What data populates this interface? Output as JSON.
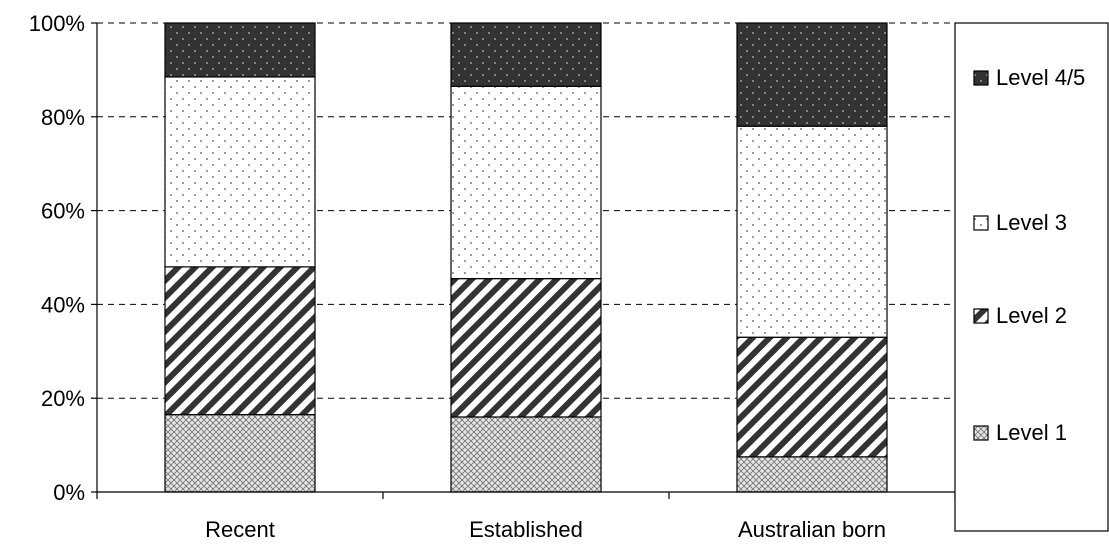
{
  "chart_data": {
    "type": "bar",
    "stacked": true,
    "percent": true,
    "categories": [
      "Recent",
      "Established",
      "Australian born"
    ],
    "series": [
      {
        "name": "Level 1",
        "values": [
          16.5,
          16,
          7.5
        ]
      },
      {
        "name": "Level 2",
        "values": [
          31.5,
          29.5,
          25.5
        ]
      },
      {
        "name": "Level 3",
        "values": [
          40.5,
          41,
          45
        ]
      },
      {
        "name": "Level 4/5",
        "values": [
          11.5,
          13.5,
          22
        ]
      }
    ],
    "legend_order": [
      "Level 4/5",
      "Level 3",
      "Level 2",
      "Level 1"
    ],
    "ylim": [
      0,
      100
    ],
    "yticks": [
      "0%",
      "20%",
      "40%",
      "60%",
      "80%",
      "100%"
    ],
    "grid": true,
    "legend_position": "right"
  }
}
